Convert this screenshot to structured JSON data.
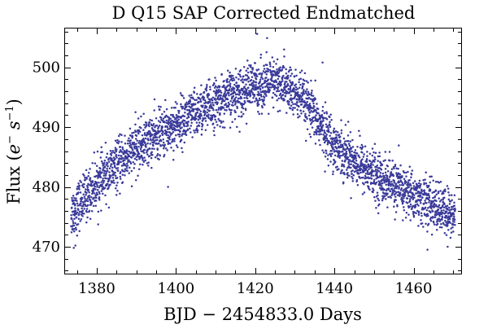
{
  "chart_data": {
    "type": "scatter",
    "title": "D Q15 SAP Corrected Endmatched",
    "xlabel": "BJD − 2454833.0 Days",
    "ylabel": {
      "prefix": "Flux (",
      "base1": "e",
      "sup1": "−",
      "mid": " s",
      "sup2": "−1",
      "suffix": ")"
    },
    "xlim": [
      1372,
      1472
    ],
    "ylim": [
      465.5,
      506.5
    ],
    "x_ticks": [
      1380,
      1400,
      1420,
      1440,
      1460
    ],
    "x_tick_labels": [
      "1380",
      "1400",
      "1420",
      "1440",
      "1460"
    ],
    "y_ticks": [
      470,
      480,
      490,
      500
    ],
    "y_tick_labels": [
      "470",
      "480",
      "490",
      "500"
    ],
    "x_minor_step": 5,
    "y_minor_step": 2,
    "point_color": "#3a3a9a",
    "series": [
      {
        "name": "SAP Corrected Endmatched flux",
        "trend_knots": {
          "x": [
            1373.5,
            1380,
            1390,
            1400,
            1410,
            1418,
            1426,
            1432,
            1440,
            1450,
            1460,
            1470.5
          ],
          "y": [
            475.5,
            480.5,
            486.5,
            490.5,
            494.0,
            496.5,
            497.5,
            494.5,
            487.0,
            482.0,
            478.5,
            475.0
          ]
        },
        "n_points": 3300,
        "x_range": [
          1373.5,
          1470.5
        ],
        "scatter_sd": 2.0,
        "outliers": [
          {
            "x": 1374.2,
            "y": 469.8
          },
          {
            "x": 1374.6,
            "y": 470.2
          },
          {
            "x": 1398.0,
            "y": 480.0
          },
          {
            "x": 1420.5,
            "y": 505.6
          },
          {
            "x": 1423.0,
            "y": 504.9
          },
          {
            "x": 1427.3,
            "y": 503.0
          },
          {
            "x": 1437.0,
            "y": 500.8
          },
          {
            "x": 1463.5,
            "y": 469.5
          },
          {
            "x": 1468.6,
            "y": 470.0
          }
        ]
      }
    ]
  }
}
